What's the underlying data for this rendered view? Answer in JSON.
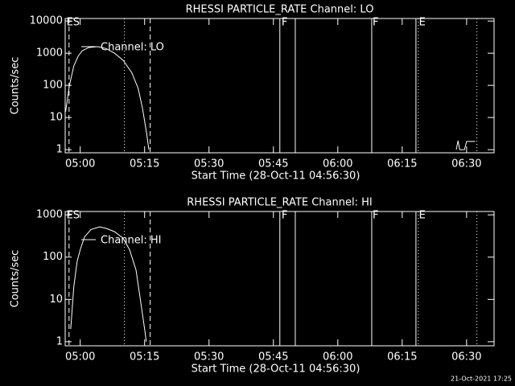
{
  "chart_data": [
    {
      "type": "line",
      "title": "RHESSI PARTICLE_RATE Channel: LO",
      "x_label": "Start Time (28-Oct-11 04:56:30)",
      "y_label": "Counts/sec",
      "log_y": true,
      "color": "#ffffff",
      "xlim": [
        296.5,
        396.4
      ],
      "ylim": [
        0.8,
        12000
      ],
      "xticks": [
        {
          "value": 300,
          "label": "05:00"
        },
        {
          "value": 315,
          "label": "05:15"
        },
        {
          "value": 330,
          "label": "05:30"
        },
        {
          "value": 345,
          "label": "05:45"
        },
        {
          "value": 360,
          "label": "06:00"
        },
        {
          "value": 375,
          "label": "06:15"
        },
        {
          "value": 390,
          "label": "06:30"
        }
      ],
      "yticks": [
        1,
        10,
        100,
        1000,
        10000
      ],
      "x": [
        296.6,
        297.5,
        298.5,
        299.5,
        300.5,
        302,
        304,
        306,
        308,
        310,
        312,
        313.5,
        314.5,
        315.5,
        316,
        387.5,
        387.6,
        388,
        388.4,
        389.5,
        390,
        392
      ],
      "series": [
        {
          "name": "Channel: LO",
          "values": [
            15,
            100,
            400,
            800,
            1200,
            1500,
            1600,
            1400,
            1000,
            600,
            250,
            80,
            20,
            3,
            1,
            null,
            1,
            1.9,
            1,
            1,
            1.8,
            1.8
          ]
        }
      ],
      "markers": [
        {
          "x": 297.4,
          "style": "dashed"
        },
        {
          "x": 316.3,
          "style": "dashed"
        },
        {
          "x": 310.3,
          "style": "dotted"
        },
        {
          "x": 346.5,
          "style": "solid"
        },
        {
          "x": 350.1,
          "style": "solid"
        },
        {
          "x": 367.9,
          "style": "solid"
        },
        {
          "x": 378.2,
          "style": "solid"
        },
        {
          "x": 378.75,
          "style": "dotted"
        },
        {
          "x": 392.4,
          "style": "dotted"
        }
      ],
      "annotations": [
        {
          "text": "ES",
          "x": 296.8
        },
        {
          "text": "F",
          "x": 346.9
        },
        {
          "text": "F",
          "x": 368.1
        },
        {
          "text": "E",
          "x": 378.9
        }
      ]
    },
    {
      "type": "line",
      "title": "RHESSI PARTICLE_RATE Channel: HI",
      "x_label": "Start Time (28-Oct-11 04:56:30)",
      "y_label": "Counts/sec",
      "log_y": true,
      "color": "#ffffff",
      "xlim": [
        296.5,
        396.4
      ],
      "ylim": [
        0.8,
        1200
      ],
      "xticks": [
        {
          "value": 300,
          "label": "05:00"
        },
        {
          "value": 315,
          "label": "05:15"
        },
        {
          "value": 330,
          "label": "05:30"
        },
        {
          "value": 345,
          "label": "05:45"
        },
        {
          "value": 360,
          "label": "06:00"
        },
        {
          "value": 375,
          "label": "06:15"
        },
        {
          "value": 390,
          "label": "06:30"
        }
      ],
      "yticks": [
        1,
        10,
        100,
        1000
      ],
      "x": [
        297.8,
        298.5,
        299.3,
        300,
        301,
        302.5,
        304.5,
        306,
        308,
        310,
        311.5,
        313,
        314,
        315,
        315.4
      ],
      "series": [
        {
          "name": "Channel: HI",
          "values": [
            2,
            20,
            80,
            150,
            300,
            450,
            520,
            480,
            400,
            280,
            150,
            50,
            10,
            2,
            1
          ]
        }
      ],
      "markers": [
        {
          "x": 297.4,
          "style": "dashed"
        },
        {
          "x": 316.3,
          "style": "dashed"
        },
        {
          "x": 310.3,
          "style": "dotted"
        },
        {
          "x": 346.5,
          "style": "solid"
        },
        {
          "x": 350.1,
          "style": "solid"
        },
        {
          "x": 367.9,
          "style": "solid"
        },
        {
          "x": 378.2,
          "style": "solid"
        },
        {
          "x": 378.75,
          "style": "dotted"
        },
        {
          "x": 392.4,
          "style": "dotted"
        }
      ],
      "annotations": [
        {
          "text": "ES",
          "x": 296.8
        },
        {
          "text": "F",
          "x": 346.9
        },
        {
          "text": "F",
          "x": 368.1
        },
        {
          "text": "E",
          "x": 378.9
        }
      ]
    }
  ],
  "footer": "21-Oct-2021 17:25"
}
